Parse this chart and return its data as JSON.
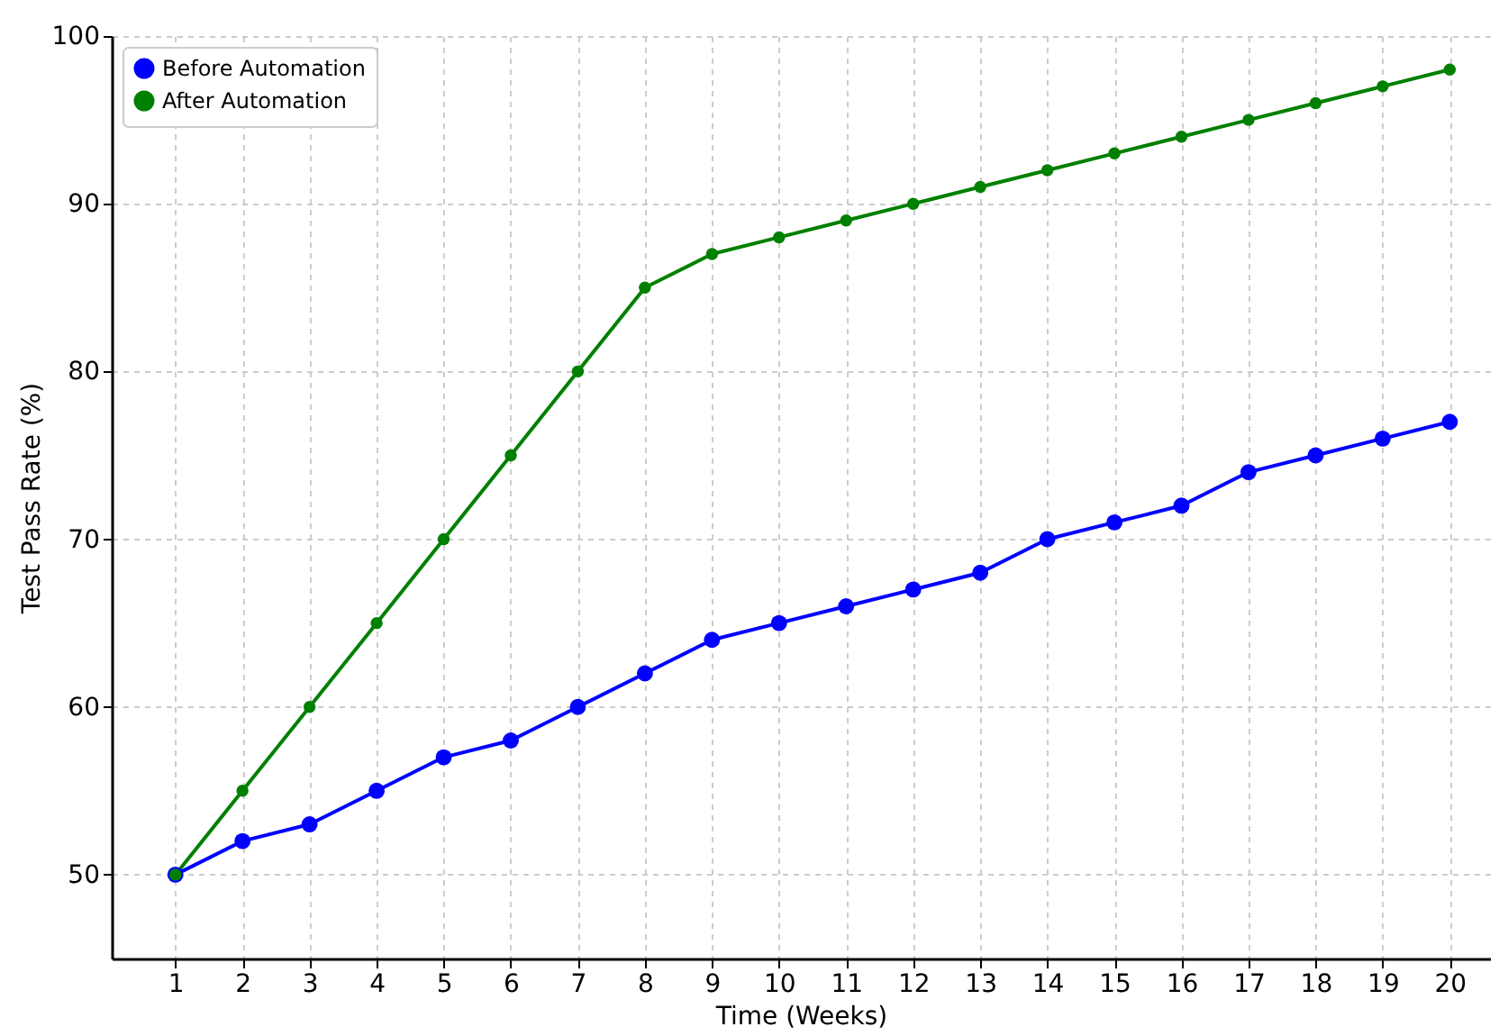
{
  "chart_data": {
    "type": "line",
    "xlabel": "Time (Weeks)",
    "ylabel": "Test Pass Rate (%)",
    "x": [
      1,
      2,
      3,
      4,
      5,
      6,
      7,
      8,
      9,
      10,
      11,
      12,
      13,
      14,
      15,
      16,
      17,
      18,
      19,
      20
    ],
    "series": [
      {
        "name": "Before Automation",
        "color": "#0000ff",
        "values": [
          50,
          52,
          53,
          55,
          57,
          58,
          60,
          62,
          64,
          65,
          66,
          67,
          68,
          70,
          71,
          72,
          74,
          75,
          76,
          77
        ]
      },
      {
        "name": "After Automation",
        "color": "#008000",
        "values": [
          50,
          55,
          60,
          65,
          70,
          75,
          80,
          85,
          87,
          88,
          89,
          90,
          91,
          92,
          93,
          94,
          95,
          96,
          97,
          98
        ]
      }
    ],
    "xlim": [
      0.05,
      20.6
    ],
    "xticks": [
      1,
      2,
      3,
      4,
      5,
      6,
      7,
      8,
      9,
      10,
      11,
      12,
      13,
      14,
      15,
      16,
      17,
      18,
      19,
      20
    ],
    "ylim": [
      45,
      100
    ],
    "yticks": [
      50,
      60,
      70,
      80,
      90,
      100
    ],
    "grid": true,
    "legend": "top left",
    "marker": "circle",
    "line_style": "solid"
  }
}
